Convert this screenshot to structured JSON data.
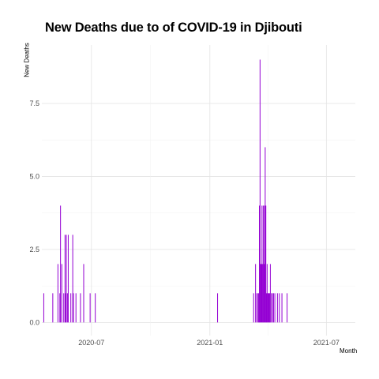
{
  "chart_data": {
    "type": "bar",
    "title": "New Deaths due to of COVID-19 in Djibouti",
    "xlabel": "Month",
    "ylabel": "New Deaths",
    "xlim": [
      "2020-04-15",
      "2021-08-15"
    ],
    "ylim": [
      -0.45,
      9.5
    ],
    "yticks": [
      0.0,
      2.5,
      5.0,
      7.5
    ],
    "ytick_labels": [
      "0.0",
      "2.5",
      "5.0",
      "7.5"
    ],
    "xticks": [
      "2020-07-01",
      "2021-01-01",
      "2021-07-01"
    ],
    "xtick_labels": [
      "2020-07",
      "2021-01",
      "2021-07"
    ],
    "grid": true,
    "bar_color": "#9400D3",
    "series": [
      {
        "x": [
          "2020-04-18",
          "2020-05-02",
          "2020-05-10",
          "2020-05-13",
          "2020-05-14",
          "2020-05-16",
          "2020-05-19",
          "2020-05-21",
          "2020-05-22",
          "2020-05-23",
          "2020-05-25",
          "2020-05-26",
          "2020-05-30",
          "2020-06-02",
          "2020-06-03",
          "2020-06-07",
          "2020-06-14",
          "2020-06-19",
          "2020-06-29",
          "2020-07-07",
          "2021-01-13",
          "2021-03-10",
          "2021-03-13",
          "2021-03-15",
          "2021-03-17",
          "2021-03-18",
          "2021-03-19",
          "2021-03-20",
          "2021-03-21",
          "2021-03-22",
          "2021-03-23",
          "2021-03-24",
          "2021-03-25",
          "2021-03-26",
          "2021-03-27",
          "2021-03-28",
          "2021-03-29",
          "2021-03-30",
          "2021-03-31",
          "2021-04-01",
          "2021-04-02",
          "2021-04-03",
          "2021-04-04",
          "2021-04-05",
          "2021-04-07",
          "2021-04-08",
          "2021-04-10",
          "2021-04-12",
          "2021-04-16",
          "2021-04-19",
          "2021-04-23",
          "2021-05-01"
        ],
        "values": [
          1,
          1,
          2,
          1,
          4,
          2,
          1,
          3,
          1,
          3,
          1,
          3,
          1,
          3,
          1,
          1,
          1,
          2,
          1,
          1,
          1,
          1,
          2,
          1,
          1,
          1,
          4,
          9,
          2,
          2,
          4,
          2,
          4,
          2,
          4,
          6,
          4,
          1,
          2,
          1,
          1,
          1,
          1,
          2,
          1,
          1,
          1,
          1,
          1,
          1,
          1,
          1
        ]
      }
    ]
  }
}
